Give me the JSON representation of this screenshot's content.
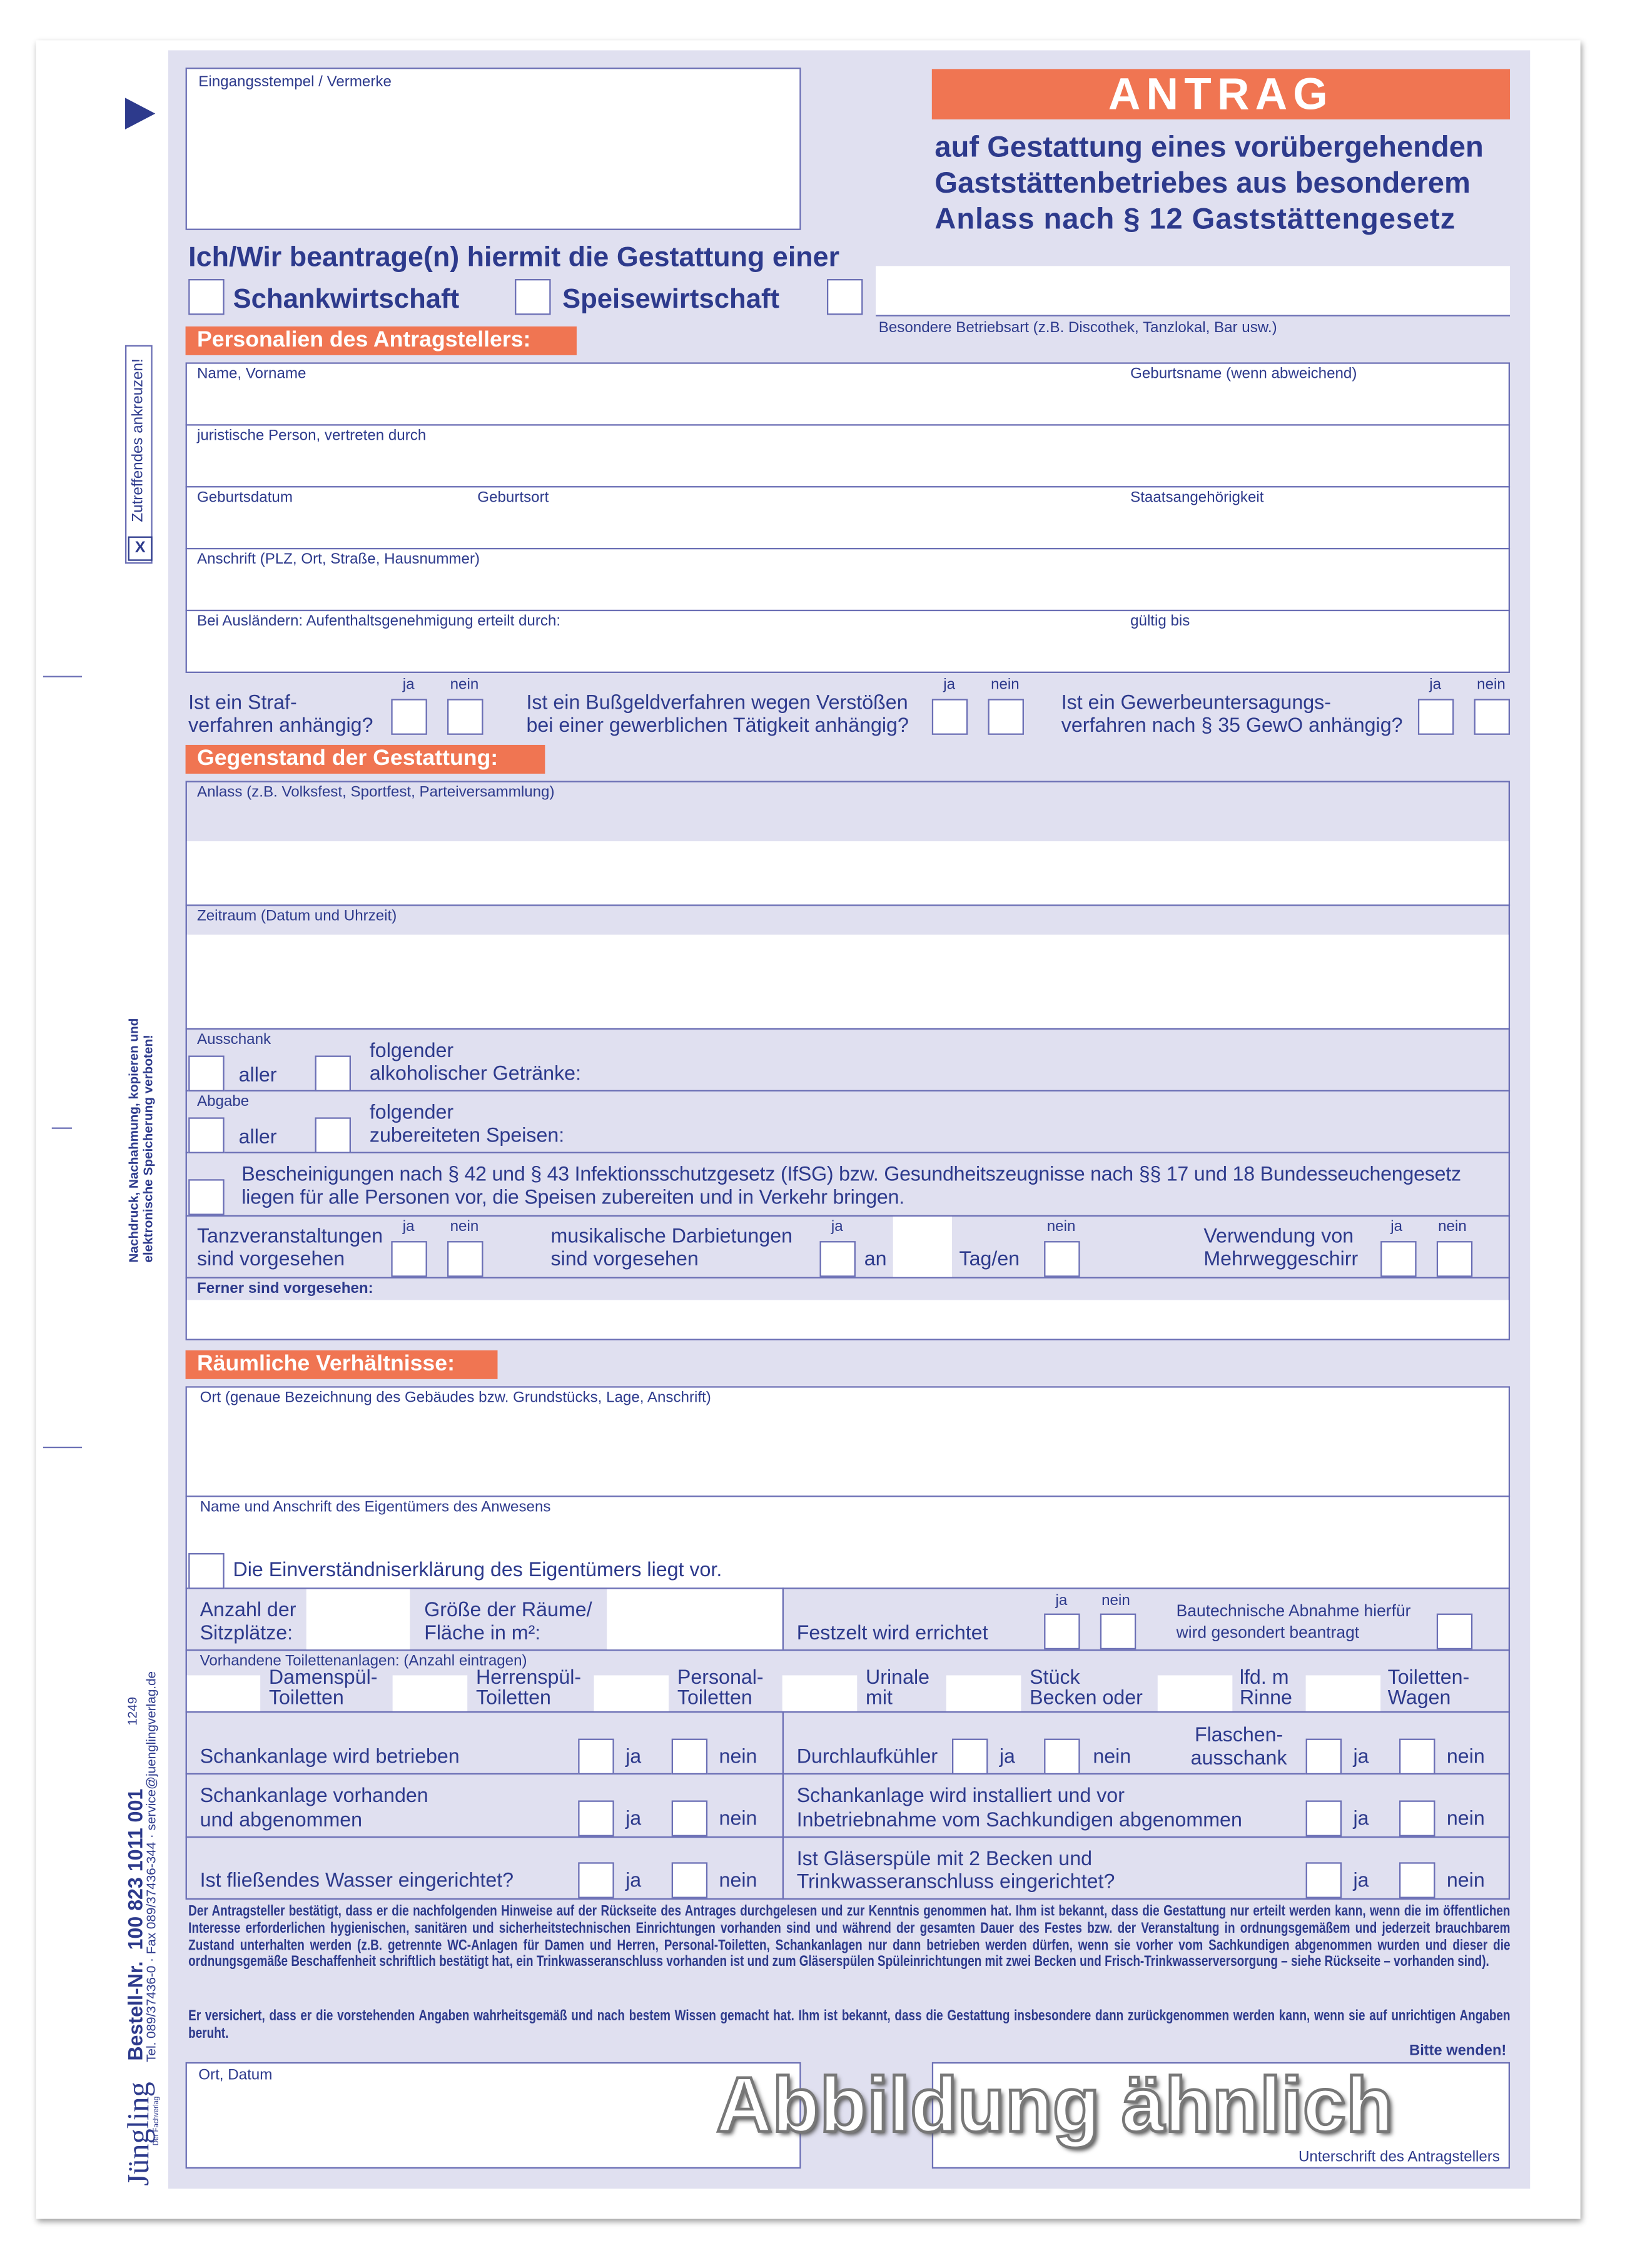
{
  "colors": {
    "text": "#2d3a8c",
    "panel": "#e0e0f0",
    "accent": "#f07552",
    "lines": "#6b6fb5"
  },
  "stamp_label": "Eingangsstempel / Vermerke",
  "title": "ANTRAG",
  "subtitle": [
    "auf Gestattung eines vorübergehenden",
    "Gaststättenbetriebes aus besonderem",
    "Anlass nach § 12 Gaststättengesetz"
  ],
  "intro": "Ich/Wir beantrage(n) hiermit die Gestattung einer",
  "types": [
    "Schankwirtschaft",
    "Speisewirtschaft"
  ],
  "other_type_caption": "Besondere Betriebsart (z.B. Discothek, Tanzlokal, Bar usw.)",
  "yes": "ja",
  "no": "nein",
  "sections": {
    "personal": "Personalien des Antragstellers:",
    "subject": "Gegenstand der Gestattung:",
    "premises": "Räumliche Verhältnisse:"
  },
  "personal": {
    "name": "Name, Vorname",
    "birth_name": "Geburtsname (wenn abweichend)",
    "legal_person": "juristische Person, vertreten durch",
    "birth_date": "Geburtsdatum",
    "birth_place": "Geburtsort",
    "nationality": "Staatsangehörigkeit",
    "address": "Anschrift (PLZ, Ort, Straße, Hausnummer)",
    "foreigners": "Bei Ausländern: Aufenthaltsgenehmigung erteilt durch:",
    "valid_until": "gültig bis"
  },
  "questions": [
    "Ist ein Straf-\nverfahren anhängig?",
    "Ist ein Bußgeldverfahren wegen Verstößen\nbei einer gewerblichen Tätigkeit anhängig?",
    "Ist ein Gewerbeuntersagungs-\nverfahren nach § 35 GewO anhängig?"
  ],
  "subject": {
    "occasion": "Anlass (z.B. Volksfest, Sportfest, Parteiversammlung)",
    "period": "Zeitraum (Datum und Uhrzeit)",
    "serving": "Ausschank",
    "dispensing": "Abgabe",
    "all": "aller",
    "drinks": "folgender\nalkoholischer Getränke:",
    "food": "folgender\nzubereiteten Speisen:",
    "certificates": "Bescheinigungen nach § 42 und § 43 Infektionsschutzgesetz (IfSG) bzw. Gesundheitszeugnisse nach §§ 17 und 18 Bundesseuchengesetz\nliegen für alle Personen vor, die Speisen zubereiten und in Verkehr bringen.",
    "dance": "Tanzveranstaltungen\nsind vorgesehen",
    "music": "musikalische Darbietungen\nsind vorgesehen",
    "on": "an",
    "days": "Tag/en",
    "reusable": "Verwendung von\nMehrweggeschirr",
    "further": "Ferner sind vorgesehen:"
  },
  "premises": {
    "location": "Ort (genaue Bezeichnung des Gebäudes bzw. Grundstücks, Lage, Anschrift)",
    "owner": "Name und Anschrift des Eigentümers des Anwesens",
    "consent": "Die Einverständniserklärung des Eigentümers liegt vor.",
    "seats": "Anzahl der\nSitzplätze:",
    "area": "Größe der Räume/\nFläche in m²:",
    "tent": "Festzelt wird errichtet",
    "building_approval": "Bautechnische Abnahme hierfür\nwird gesondert beantragt",
    "toilets_caption": "Vorhandene Toilettenanlagen: (Anzahl eintragen)",
    "toilets": [
      "Damenspül-\nToiletten",
      "Herrenspül-\nToiletten",
      "Personal-\nToiletten",
      "Urinale\nmit",
      "Stück\nBecken oder",
      "lfd. m\nRinne",
      "Toiletten-\nWagen"
    ],
    "tap_operated": "Schankanlage wird betrieben",
    "flow_cooler": "Durchlaufkühler",
    "bottle": "Flaschen-\nausschank",
    "tap_present": "Schankanlage vorhanden\nund abgenommen",
    "tap_installed": "Schankanlage wird installiert und vor\nInbetriebnahme vom Sachkundigen abgenommen",
    "water": "Ist fließendes Wasser eingerichtet?",
    "glass_sink": "Ist Gläserspüle mit 2 Becken und\nTrinkwasseranschluss eingerichtet?"
  },
  "declaration_1": "Der Antragsteller bestätigt, dass er die nachfolgenden Hinweise auf der Rückseite des Antrages durchgelesen und zur Kenntnis genommen hat. Ihm ist bekannt, dass die Gestattung nur erteilt werden kann, wenn die im öffentlichen Interesse erforderlichen hygienischen, sanitären und sicherheitstechnischen Einrichtungen vorhanden sind und während der gesamten Dauer des Festes bzw. der Veranstaltung in ordnungsgemäßem und jederzeit brauchbarem Zustand unterhalten werden (z.B. getrennte WC-Anlagen für Damen und Herren, Personal-Toiletten, Schankanlagen nur dann betrieben werden dürfen, wenn sie vorher vom Sachkundigen abgenommen wurden und dieser die ordnungsgemäße Beschaffenheit schriftlich bestätigt hat, ein Trinkwasseranschluss vorhanden ist und zum Gläserspülen Spüleinrichtungen mit zwei Becken und Frisch-Trinkwasserversorgung – siehe Rückseite – vorhanden sind).",
  "declaration_2": "Er versichert, dass er die vorstehenden Angaben wahrheitsgemäß und nach bestem Wissen gemacht hat. Ihm ist bekannt, dass die Gestattung insbesondere dann zurückgenommen werden kann, wenn sie auf unrichtigen Angaben beruht.",
  "turn_over": "Bitte wenden!",
  "place_date": "Ort, Datum",
  "signature": "Unterschrift des Antragstellers",
  "watermark": "Abbildung ähnlich",
  "margin": {
    "tick_hint": "Zutreffendes ankreuzen!",
    "tick_mark": "X",
    "copyright": "Nachdruck, Nachahmung, kopieren und\nelektronische Speicherung verboten!",
    "order_no": "Bestell-Nr.  100 823 1011 001",
    "contact": "Tel. 089/37436-0 · Fax 089/37436-344 · service@juenglingverlag.de",
    "code": "1249",
    "brand": "Jüngling",
    "brand_sub": "Der Fachverlag"
  }
}
